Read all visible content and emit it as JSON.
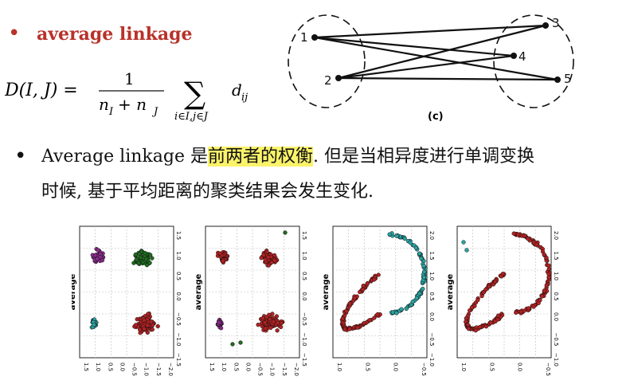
{
  "bullet": "•",
  "heading": "average linkage",
  "formula": {
    "lhs": "D(I, J) =",
    "numerator": "1",
    "denominator": "n",
    "sub_i": "I",
    "plus": "+ n",
    "sub_j": "J",
    "sum": "∑",
    "sum_sub": "i∈I,j∈J",
    "term": "d",
    "term_sub": "ij"
  },
  "diagram": {
    "caption": "(c)",
    "labels": [
      "1",
      "2",
      "3",
      "4",
      "5"
    ]
  },
  "paragraph": {
    "line1_pre": "Average linkage 是",
    "line1_highlight": "前两者的权衡",
    "line1_post": ". 但是当相异度进行单调变换",
    "line2": "时候, 基于平均距离的聚类结果会发生变化."
  },
  "plots": {
    "ylabel": "average",
    "xticks_a": [
      "1.5",
      "1.0",
      "0.5",
      "0.0",
      "−0.5",
      "−1.0",
      "−1.5",
      "−2.0"
    ],
    "yticks_a": [
      "1.5",
      "1.0",
      "0.5",
      "0.0",
      "−0.5",
      "−1.0",
      "−1.5"
    ],
    "xticks_b": [
      "1.0",
      "0.5",
      "0.0",
      "−0.5"
    ],
    "yticks_b": [
      "2.0",
      "1.5",
      "1.0",
      "0.5",
      "0.0",
      "−0.5",
      "−1.0"
    ],
    "colors": {
      "red": "#b22222",
      "green": "#1f6b1f",
      "purple": "#8a2a8a",
      "teal": "#2aa3a3"
    }
  }
}
